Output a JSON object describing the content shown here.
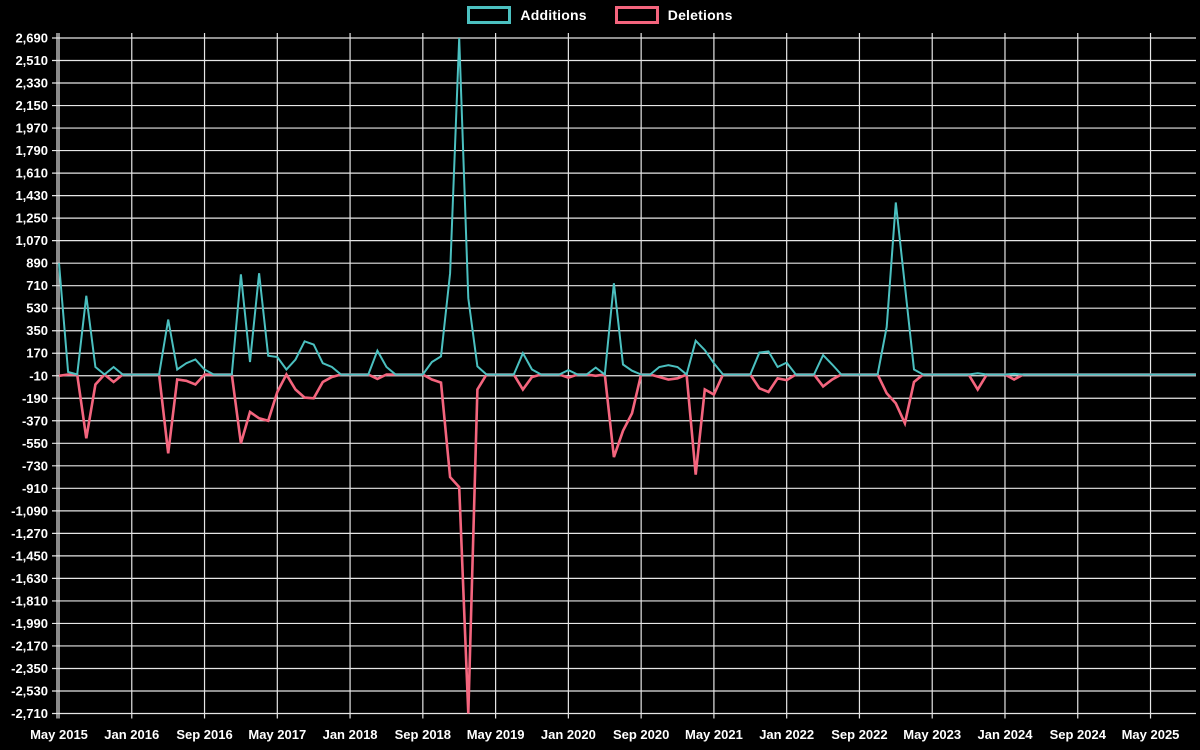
{
  "chart_data": {
    "type": "line",
    "title": "",
    "legend_position": "top",
    "grid": true,
    "background_color": "#000000",
    "grid_color": "#e6e6e6",
    "text_color": "#ffffff",
    "ylim": [
      -2710,
      2690
    ],
    "y_tick_step": 180,
    "y_tick_labels": [
      "2,690",
      "2,510",
      "2,330",
      "2,150",
      "1,970",
      "1,790",
      "1,610",
      "1,430",
      "1,250",
      "1,070",
      "890",
      "710",
      "530",
      "350",
      "170",
      "-10",
      "-190",
      "-370",
      "-550",
      "-730",
      "-910",
      "-1,090",
      "-1,270",
      "-1,450",
      "-1,630",
      "-1,810",
      "-1,990",
      "-2,170",
      "-2,350",
      "-2,530",
      "-2,710"
    ],
    "x_tick_labels": [
      "May 2015",
      "Jan 2016",
      "Sep 2016",
      "May 2017",
      "Jan 2018",
      "Sep 2018",
      "May 2019",
      "Jan 2020",
      "Sep 2020",
      "May 2021",
      "Jan 2022",
      "Sep 2022",
      "May 2023",
      "Jan 2024",
      "Sep 2024",
      "May 2025"
    ],
    "months_per_x_tick": 8,
    "x_unit": "month",
    "series": [
      {
        "name": "Additions",
        "color": "#4bc0c0",
        "values": [
          890,
          20,
          0,
          630,
          60,
          0,
          60,
          0,
          0,
          0,
          0,
          0,
          440,
          40,
          90,
          120,
          40,
          0,
          0,
          0,
          800,
          100,
          810,
          150,
          140,
          40,
          120,
          265,
          240,
          90,
          60,
          0,
          0,
          0,
          0,
          190,
          60,
          0,
          0,
          0,
          0,
          100,
          145,
          810,
          2690,
          610,
          65,
          0,
          0,
          0,
          0,
          170,
          40,
          0,
          0,
          0,
          35,
          0,
          0,
          55,
          0,
          730,
          80,
          30,
          0,
          0,
          60,
          75,
          60,
          0,
          270,
          195,
          90,
          0,
          0,
          0,
          0,
          175,
          185,
          60,
          95,
          0,
          0,
          0,
          155,
          80,
          0,
          0,
          0,
          0,
          0,
          380,
          1375,
          710,
          40,
          0,
          0,
          0,
          0,
          0,
          0,
          10,
          0,
          0,
          0,
          5,
          0,
          0,
          0,
          0,
          0,
          0,
          0,
          0,
          0,
          0,
          0,
          0,
          0,
          0,
          0,
          0,
          0,
          0,
          0,
          0
        ]
      },
      {
        "name": "Deletions",
        "color": "#f4657e",
        "values": [
          -10,
          0,
          0,
          -510,
          -80,
          0,
          -60,
          0,
          0,
          0,
          0,
          0,
          -630,
          -40,
          -50,
          -80,
          0,
          0,
          0,
          0,
          -550,
          -300,
          -350,
          -370,
          -140,
          0,
          -120,
          -185,
          -190,
          -60,
          -20,
          0,
          0,
          0,
          0,
          -35,
          0,
          0,
          0,
          0,
          0,
          -40,
          -65,
          -820,
          -900,
          -2710,
          -120,
          0,
          0,
          0,
          0,
          -120,
          -20,
          0,
          0,
          0,
          -25,
          0,
          0,
          -10,
          0,
          -660,
          -450,
          -310,
          0,
          0,
          -20,
          -40,
          -30,
          0,
          -800,
          -120,
          -160,
          0,
          0,
          0,
          0,
          -110,
          -140,
          -30,
          -45,
          0,
          0,
          0,
          -95,
          -40,
          0,
          0,
          0,
          0,
          0,
          -150,
          -230,
          -390,
          -60,
          0,
          0,
          0,
          0,
          0,
          0,
          -120,
          0,
          0,
          0,
          -40,
          0,
          0,
          0,
          0,
          0,
          0,
          0,
          0,
          0,
          0,
          0,
          0,
          0,
          0,
          0,
          0,
          0,
          0,
          0,
          0
        ]
      }
    ]
  }
}
